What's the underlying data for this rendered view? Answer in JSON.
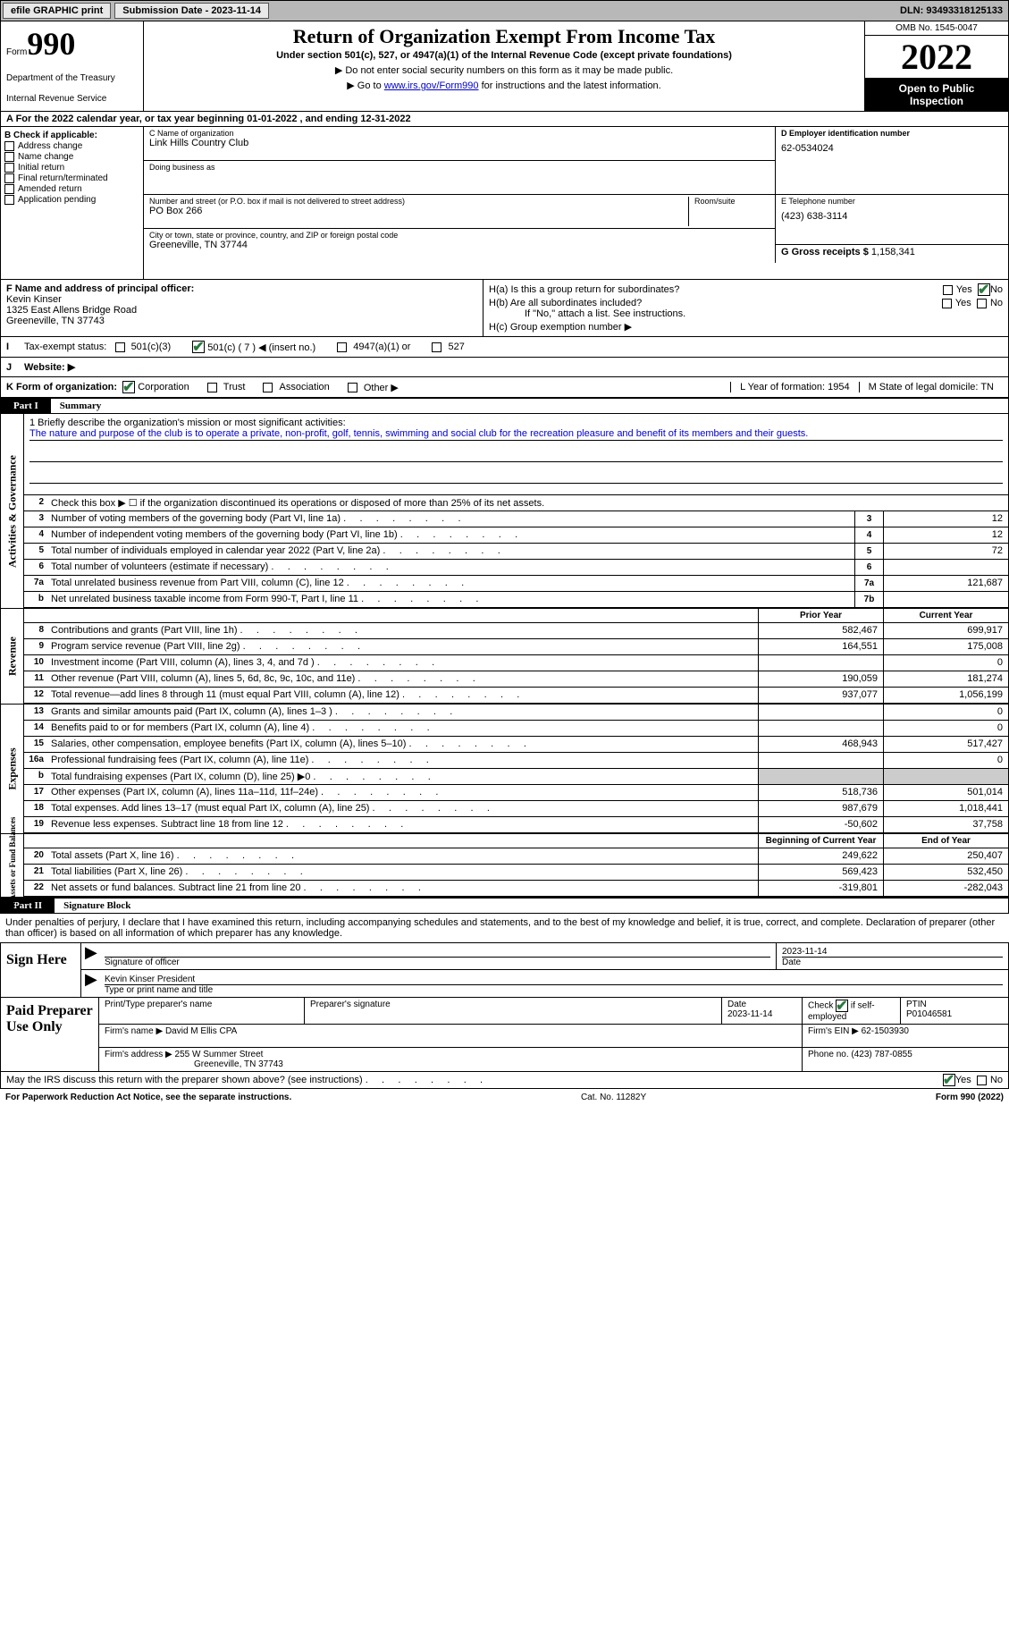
{
  "topbar": {
    "efile": "efile GRAPHIC print",
    "submission_label": "Submission Date - 2023-11-14",
    "dln_label": "DLN: 93493318125133"
  },
  "header": {
    "form_small": "Form",
    "form_big": "990",
    "dept": "Department of the Treasury",
    "irs": "Internal Revenue Service",
    "title": "Return of Organization Exempt From Income Tax",
    "sub1": "Under section 501(c), 527, or 4947(a)(1) of the Internal Revenue Code (except private foundations)",
    "sub2": "▶ Do not enter social security numbers on this form as it may be made public.",
    "sub3_pre": "▶ Go to ",
    "sub3_link": "www.irs.gov/Form990",
    "sub3_post": " for instructions and the latest information.",
    "omb": "OMB No. 1545-0047",
    "year": "2022",
    "open1": "Open to Public",
    "open2": "Inspection"
  },
  "cal_row": "A For the 2022 calendar year, or tax year beginning 01-01-2022    , and ending 12-31-2022",
  "block_b": {
    "label": "B Check if applicable:",
    "items": [
      "Address change",
      "Name change",
      "Initial return",
      "Final return/terminated",
      "Amended return",
      "Application pending"
    ]
  },
  "block_c": {
    "name_label": "C Name of organization",
    "name": "Link Hills Country Club",
    "dba_label": "Doing business as",
    "addr_label": "Number and street (or P.O. box if mail is not delivered to street address)",
    "room_label": "Room/suite",
    "addr": "PO Box 266",
    "city_label": "City or town, state or province, country, and ZIP or foreign postal code",
    "city": "Greeneville, TN  37744"
  },
  "block_d": {
    "ein_label": "D Employer identification number",
    "ein": "62-0534024",
    "tel_label": "E Telephone number",
    "tel": "(423) 638-3114",
    "gross_label": "G Gross receipts $",
    "gross": "1,158,341"
  },
  "block_f": {
    "label": "F  Name and address of principal officer:",
    "name": "Kevin Kinser",
    "addr1": "1325 East Allens Bridge Road",
    "addr2": "Greeneville, TN  37743"
  },
  "block_h": {
    "a": "H(a)  Is this a group return for subordinates?",
    "b": "H(b)  Are all subordinates included?",
    "b_note": "If \"No,\" attach a list. See instructions.",
    "c": "H(c)  Group exemption number ▶",
    "yes": "Yes",
    "no": "No"
  },
  "status": {
    "label": "Tax-exempt status:",
    "c3": "501(c)(3)",
    "c": "501(c) ( 7 ) ◀ (insert no.)",
    "a1": "4947(a)(1) or",
    "527": "527"
  },
  "website": {
    "label": "Website: ▶"
  },
  "kform": {
    "label": "K Form of organization:",
    "corp": "Corporation",
    "trust": "Trust",
    "assoc": "Association",
    "other": "Other ▶",
    "l": "L Year of formation: 1954",
    "m": "M State of legal domicile: TN"
  },
  "part1": {
    "label": "Part I",
    "title": "Summary"
  },
  "mission": {
    "prompt": "1   Briefly describe the organization's mission or most significant activities:",
    "text": "The nature and purpose of the club is to operate a private, non-profit, golf, tennis, swimming and social club for the recreation pleasure and benefit of its members and their guests."
  },
  "lines_gov": {
    "l2": "Check this box ▶ ☐ if the organization discontinued its operations or disposed of more than 25% of its net assets.",
    "rows": [
      {
        "n": "3",
        "t": "Number of voting members of the governing body (Part VI, line 1a)",
        "box": "3",
        "v": "12"
      },
      {
        "n": "4",
        "t": "Number of independent voting members of the governing body (Part VI, line 1b)",
        "box": "4",
        "v": "12"
      },
      {
        "n": "5",
        "t": "Total number of individuals employed in calendar year 2022 (Part V, line 2a)",
        "box": "5",
        "v": "72"
      },
      {
        "n": "6",
        "t": "Total number of volunteers (estimate if necessary)",
        "box": "6",
        "v": ""
      },
      {
        "n": "7a",
        "t": "Total unrelated business revenue from Part VIII, column (C), line 12",
        "box": "7a",
        "v": "121,687"
      },
      {
        "n": "b",
        "t": "Net unrelated business taxable income from Form 990-T, Part I, line 11",
        "box": "7b",
        "v": ""
      }
    ]
  },
  "side_labels": {
    "gov": "Activities & Governance",
    "rev": "Revenue",
    "exp": "Expenses",
    "net": "Net Assets or Fund Balances"
  },
  "col_heads": {
    "prior": "Prior Year",
    "current": "Current Year",
    "boy": "Beginning of Current Year",
    "eoy": "End of Year"
  },
  "rev_rows": [
    {
      "n": "8",
      "t": "Contributions and grants (Part VIII, line 1h)",
      "p": "582,467",
      "c": "699,917"
    },
    {
      "n": "9",
      "t": "Program service revenue (Part VIII, line 2g)",
      "p": "164,551",
      "c": "175,008"
    },
    {
      "n": "10",
      "t": "Investment income (Part VIII, column (A), lines 3, 4, and 7d )",
      "p": "",
      "c": "0"
    },
    {
      "n": "11",
      "t": "Other revenue (Part VIII, column (A), lines 5, 6d, 8c, 9c, 10c, and 11e)",
      "p": "190,059",
      "c": "181,274"
    },
    {
      "n": "12",
      "t": "Total revenue—add lines 8 through 11 (must equal Part VIII, column (A), line 12)",
      "p": "937,077",
      "c": "1,056,199"
    }
  ],
  "exp_rows": [
    {
      "n": "13",
      "t": "Grants and similar amounts paid (Part IX, column (A), lines 1–3 )",
      "p": "",
      "c": "0"
    },
    {
      "n": "14",
      "t": "Benefits paid to or for members (Part IX, column (A), line 4)",
      "p": "",
      "c": "0"
    },
    {
      "n": "15",
      "t": "Salaries, other compensation, employee benefits (Part IX, column (A), lines 5–10)",
      "p": "468,943",
      "c": "517,427"
    },
    {
      "n": "16a",
      "t": "Professional fundraising fees (Part IX, column (A), line 11e)",
      "p": "",
      "c": "0"
    },
    {
      "n": "b",
      "t": "Total fundraising expenses (Part IX, column (D), line 25) ▶0",
      "p": "GRAY",
      "c": "GRAY"
    },
    {
      "n": "17",
      "t": "Other expenses (Part IX, column (A), lines 11a–11d, 11f–24e)",
      "p": "518,736",
      "c": "501,014"
    },
    {
      "n": "18",
      "t": "Total expenses. Add lines 13–17 (must equal Part IX, column (A), line 25)",
      "p": "987,679",
      "c": "1,018,441"
    },
    {
      "n": "19",
      "t": "Revenue less expenses. Subtract line 18 from line 12",
      "p": "-50,602",
      "c": "37,758"
    }
  ],
  "net_rows": [
    {
      "n": "20",
      "t": "Total assets (Part X, line 16)",
      "p": "249,622",
      "c": "250,407"
    },
    {
      "n": "21",
      "t": "Total liabilities (Part X, line 26)",
      "p": "569,423",
      "c": "532,450"
    },
    {
      "n": "22",
      "t": "Net assets or fund balances. Subtract line 21 from line 20",
      "p": "-319,801",
      "c": "-282,043"
    }
  ],
  "part2": {
    "label": "Part II",
    "title": "Signature Block"
  },
  "sig": {
    "penalty": "Under penalties of perjury, I declare that I have examined this return, including accompanying schedules and statements, and to the best of my knowledge and belief, it is true, correct, and complete. Declaration of preparer (other than officer) is based on all information of which preparer has any knowledge.",
    "sign_here": "Sign Here",
    "sig_officer": "Signature of officer",
    "date": "Date",
    "date_val": "2023-11-14",
    "name_title": "Kevin Kinser  President",
    "type_name": "Type or print name and title"
  },
  "prep": {
    "title": "Paid Preparer Use Only",
    "print_name": "Print/Type preparer's name",
    "prep_sig": "Preparer's signature",
    "date": "Date",
    "date_val": "2023-11-14",
    "check_se": "Check ☑ if self-employed",
    "ptin": "PTIN",
    "ptin_val": "P01046581",
    "firm_name_l": "Firm's name    ▶",
    "firm_name": "David M Ellis CPA",
    "firm_ein_l": "Firm's EIN ▶",
    "firm_ein": "62-1503930",
    "firm_addr_l": "Firm's address ▶",
    "firm_addr1": "255 W Summer Street",
    "firm_addr2": "Greeneville, TN  37743",
    "phone_l": "Phone no.",
    "phone": "(423) 787-0855"
  },
  "bottom": {
    "q": "May the IRS discuss this return with the preparer shown above? (see instructions)",
    "yes": "Yes",
    "no": "No"
  },
  "footer": {
    "left": "For Paperwork Reduction Act Notice, see the separate instructions.",
    "mid": "Cat. No. 11282Y",
    "right": "Form 990 (2022)"
  }
}
